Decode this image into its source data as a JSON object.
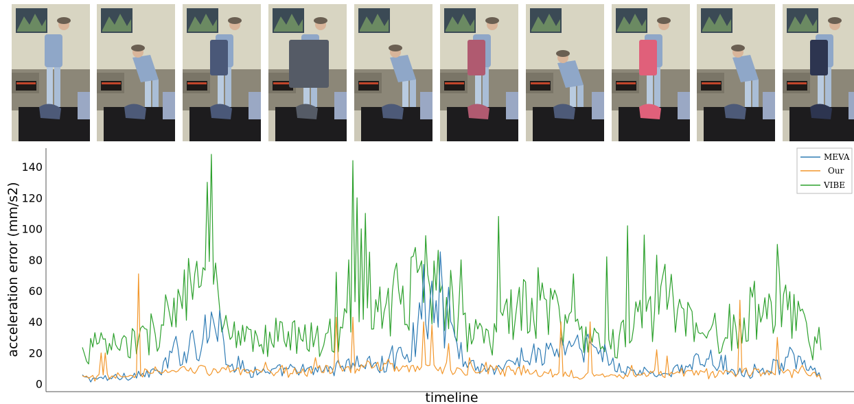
{
  "frames": [
    {
      "shirt_color": "#4d5a78",
      "pose": "standing"
    },
    {
      "shirt_color": "#4d5a78",
      "pose": "bending"
    },
    {
      "shirt_color": "#4a5878",
      "pose": "holding"
    },
    {
      "shirt_color": "#555b66",
      "pose": "holding-wide"
    },
    {
      "shirt_color": "#4d5a78",
      "pose": "bending"
    },
    {
      "shirt_color": "#b05a70",
      "pose": "holding"
    },
    {
      "shirt_color": "#4d5a78",
      "pose": "bending-deep"
    },
    {
      "shirt_color": "#e0607a",
      "pose": "holding"
    },
    {
      "shirt_color": "#4d5a78",
      "pose": "bending"
    },
    {
      "shirt_color": "#2d3550",
      "pose": "holding"
    }
  ],
  "chart_data": {
    "type": "line",
    "xlabel": "timeline",
    "ylabel": "acceleration error (mm/s2)",
    "ylim": [
      -5,
      152
    ],
    "yticks": [
      0,
      20,
      40,
      60,
      80,
      100,
      120,
      140
    ],
    "n_points": 356,
    "legend_position": "top-right",
    "series": [
      {
        "name": "MEVA",
        "color": "#2e7bb4",
        "anchors": [
          [
            0,
            4
          ],
          [
            8,
            3
          ],
          [
            18,
            5
          ],
          [
            28,
            6
          ],
          [
            38,
            8
          ],
          [
            43,
            18
          ],
          [
            46,
            24
          ],
          [
            48,
            16
          ],
          [
            52,
            30
          ],
          [
            56,
            24
          ],
          [
            58,
            40
          ],
          [
            60,
            30
          ],
          [
            62,
            50
          ],
          [
            64,
            28
          ],
          [
            66,
            42
          ],
          [
            68,
            22
          ],
          [
            72,
            14
          ],
          [
            80,
            9
          ],
          [
            90,
            7
          ],
          [
            100,
            9
          ],
          [
            110,
            8
          ],
          [
            118,
            10
          ],
          [
            125,
            12
          ],
          [
            135,
            14
          ],
          [
            140,
            11
          ],
          [
            146,
            13
          ],
          [
            150,
            18
          ],
          [
            154,
            20
          ],
          [
            158,
            24
          ],
          [
            162,
            40
          ],
          [
            164,
            62
          ],
          [
            166,
            45
          ],
          [
            168,
            78
          ],
          [
            170,
            42
          ],
          [
            172,
            60
          ],
          [
            174,
            40
          ],
          [
            176,
            52
          ],
          [
            178,
            30
          ],
          [
            182,
            20
          ],
          [
            188,
            12
          ],
          [
            196,
            10
          ],
          [
            206,
            12
          ],
          [
            214,
            20
          ],
          [
            220,
            17
          ],
          [
            228,
            24
          ],
          [
            236,
            22
          ],
          [
            244,
            25
          ],
          [
            250,
            20
          ],
          [
            256,
            12
          ],
          [
            266,
            8
          ],
          [
            276,
            6
          ],
          [
            286,
            9
          ],
          [
            294,
            12
          ],
          [
            300,
            17
          ],
          [
            306,
            14
          ],
          [
            312,
            10
          ],
          [
            318,
            8
          ],
          [
            326,
            9
          ],
          [
            334,
            12
          ],
          [
            340,
            18
          ],
          [
            344,
            13
          ],
          [
            350,
            8
          ],
          [
            355,
            6
          ]
        ]
      },
      {
        "name": "Our",
        "color": "#f2962a",
        "anchors": [
          [
            0,
            4
          ],
          [
            10,
            4
          ],
          [
            20,
            5
          ],
          [
            30,
            7
          ],
          [
            40,
            8
          ],
          [
            50,
            9
          ],
          [
            60,
            10
          ],
          [
            70,
            9
          ],
          [
            80,
            7
          ],
          [
            90,
            7
          ],
          [
            100,
            8
          ],
          [
            110,
            9
          ],
          [
            120,
            10
          ],
          [
            130,
            10
          ],
          [
            140,
            11
          ],
          [
            150,
            10
          ],
          [
            160,
            12
          ],
          [
            170,
            10
          ],
          [
            180,
            9
          ],
          [
            190,
            8
          ],
          [
            200,
            8
          ],
          [
            210,
            8
          ],
          [
            220,
            7
          ],
          [
            230,
            7
          ],
          [
            240,
            6
          ],
          [
            250,
            6
          ],
          [
            260,
            6
          ],
          [
            270,
            6
          ],
          [
            280,
            6
          ],
          [
            290,
            7
          ],
          [
            300,
            7
          ],
          [
            310,
            7
          ],
          [
            320,
            7
          ],
          [
            330,
            7
          ],
          [
            340,
            8
          ],
          [
            350,
            7
          ],
          [
            355,
            6
          ]
        ],
        "spikes": [
          [
            9,
            20
          ],
          [
            11,
            20
          ],
          [
            27,
            71
          ],
          [
            57,
            12
          ],
          [
            70,
            12
          ],
          [
            88,
            14
          ],
          [
            96,
            12
          ],
          [
            112,
            17
          ],
          [
            122,
            43
          ],
          [
            130,
            43
          ],
          [
            137,
            15
          ],
          [
            147,
            16
          ],
          [
            156,
            12
          ],
          [
            164,
            40
          ],
          [
            168,
            38
          ],
          [
            176,
            26
          ],
          [
            186,
            17
          ],
          [
            194,
            14
          ],
          [
            212,
            12
          ],
          [
            230,
            40
          ],
          [
            244,
            40
          ],
          [
            264,
            12
          ],
          [
            276,
            22
          ],
          [
            281,
            18
          ],
          [
            288,
            10
          ],
          [
            316,
            54
          ],
          [
            334,
            30
          ],
          [
            346,
            12
          ]
        ]
      },
      {
        "name": "VIBE",
        "color": "#2ca02c",
        "anchors": [
          [
            0,
            20
          ],
          [
            8,
            25
          ],
          [
            18,
            24
          ],
          [
            28,
            28
          ],
          [
            36,
            35
          ],
          [
            40,
            45
          ],
          [
            44,
            52
          ],
          [
            48,
            55
          ],
          [
            52,
            58
          ],
          [
            56,
            60
          ],
          [
            60,
            65
          ],
          [
            62,
            62
          ],
          [
            64,
            55
          ],
          [
            66,
            45
          ],
          [
            70,
            30
          ],
          [
            76,
            26
          ],
          [
            84,
            28
          ],
          [
            92,
            30
          ],
          [
            100,
            30
          ],
          [
            108,
            32
          ],
          [
            116,
            30
          ],
          [
            124,
            32
          ],
          [
            130,
            38
          ],
          [
            136,
            42
          ],
          [
            142,
            45
          ],
          [
            148,
            55
          ],
          [
            152,
            60
          ],
          [
            156,
            58
          ],
          [
            160,
            65
          ],
          [
            164,
            70
          ],
          [
            168,
            68
          ],
          [
            172,
            60
          ],
          [
            176,
            55
          ],
          [
            180,
            45
          ],
          [
            184,
            38
          ],
          [
            188,
            32
          ],
          [
            194,
            30
          ],
          [
            200,
            34
          ],
          [
            206,
            45
          ],
          [
            212,
            48
          ],
          [
            218,
            42
          ],
          [
            224,
            48
          ],
          [
            230,
            42
          ],
          [
            236,
            35
          ],
          [
            242,
            30
          ],
          [
            248,
            27
          ],
          [
            256,
            27
          ],
          [
            262,
            32
          ],
          [
            268,
            45
          ],
          [
            274,
            40
          ],
          [
            278,
            58
          ],
          [
            284,
            55
          ],
          [
            290,
            40
          ],
          [
            296,
            30
          ],
          [
            302,
            32
          ],
          [
            308,
            35
          ],
          [
            314,
            38
          ],
          [
            320,
            45
          ],
          [
            326,
            48
          ],
          [
            332,
            52
          ],
          [
            338,
            50
          ],
          [
            344,
            40
          ],
          [
            350,
            28
          ],
          [
            355,
            30
          ]
        ],
        "spikes": [
          [
            58,
            75
          ],
          [
            60,
            130
          ],
          [
            62,
            148
          ],
          [
            64,
            78
          ],
          [
            122,
            72
          ],
          [
            128,
            80
          ],
          [
            130,
            144
          ],
          [
            132,
            120
          ],
          [
            134,
            100
          ],
          [
            136,
            110
          ],
          [
            138,
            85
          ],
          [
            160,
            88
          ],
          [
            182,
            80
          ],
          [
            200,
            108
          ],
          [
            219,
            75
          ],
          [
            236,
            71
          ],
          [
            252,
            82
          ],
          [
            262,
            102
          ],
          [
            270,
            96
          ],
          [
            276,
            83
          ],
          [
            334,
            90
          ]
        ]
      }
    ]
  }
}
